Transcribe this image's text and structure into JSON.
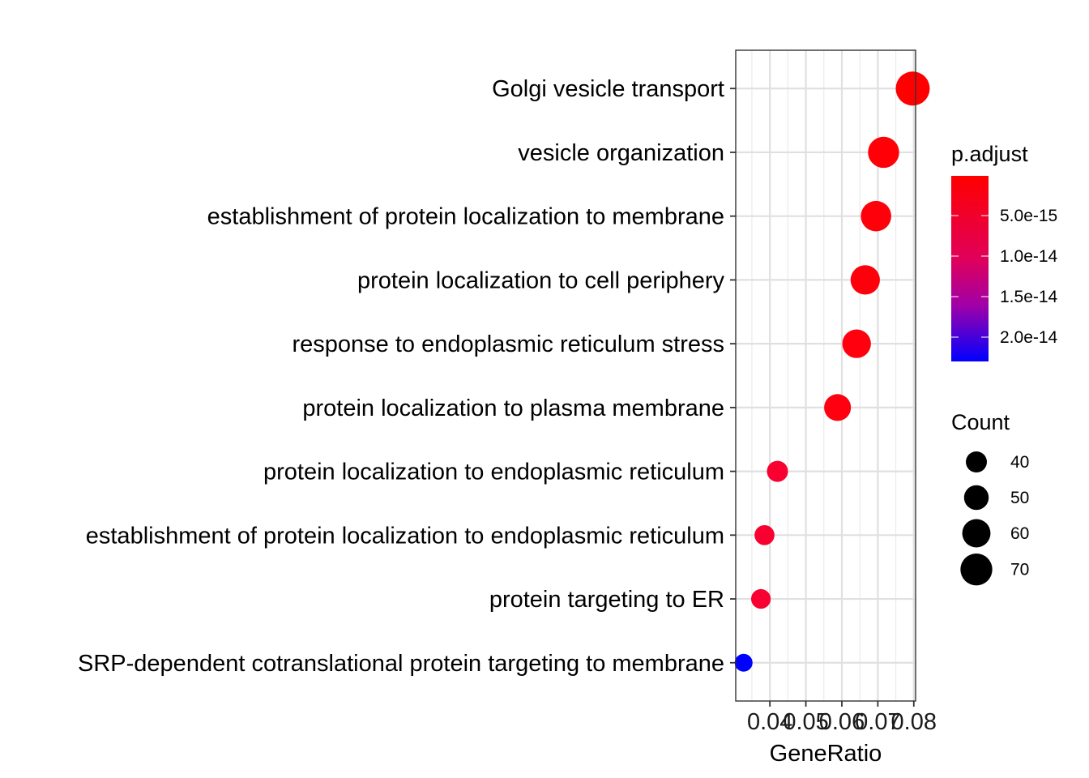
{
  "chart_data": {
    "type": "scatter",
    "title": "",
    "xlabel": "GeneRatio",
    "ylabel": "",
    "xlim": [
      0.0305,
      0.0805
    ],
    "x_ticks": [
      0.04,
      0.05,
      0.06,
      0.07,
      0.08
    ],
    "x_tick_labels": [
      "0.04",
      "0.05",
      "0.06",
      "0.07",
      "0.08"
    ],
    "grid": true,
    "categories": [
      "Golgi vesicle transport",
      "vesicle organization",
      "establishment of protein localization to membrane",
      "protein localization to cell periphery",
      "response to endoplasmic reticulum stress",
      "protein localization to plasma membrane",
      "protein localization to endoplasmic reticulum",
      "establishment of protein localization to endoplasmic reticulum",
      "protein targeting to ER",
      "SRP-dependent cotranslational protein targeting to membrane"
    ],
    "points": [
      {
        "term": "Golgi vesicle transport",
        "gene_ratio": 0.0797,
        "count": 76,
        "p_adjust": 1e-16,
        "color": "#FF0000"
      },
      {
        "term": "vesicle organization",
        "gene_ratio": 0.0716,
        "count": 68,
        "p_adjust": 2e-16,
        "color": "#FE0006"
      },
      {
        "term": "establishment of protein localization to membrane",
        "gene_ratio": 0.0695,
        "count": 66,
        "p_adjust": 3e-16,
        "color": "#FE000A"
      },
      {
        "term": "protein localization to cell periphery",
        "gene_ratio": 0.0665,
        "count": 63,
        "p_adjust": 5e-16,
        "color": "#FE000C"
      },
      {
        "term": "response to endoplasmic reticulum stress",
        "gene_ratio": 0.0641,
        "count": 61,
        "p_adjust": 8e-16,
        "color": "#FE000E"
      },
      {
        "term": "protein localization to plasma membrane",
        "gene_ratio": 0.0588,
        "count": 56,
        "p_adjust": 1.2e-15,
        "color": "#FE0010"
      },
      {
        "term": "protein localization to endoplasmic reticulum",
        "gene_ratio": 0.0421,
        "count": 40,
        "p_adjust": 2.4e-15,
        "color": "#F80030"
      },
      {
        "term": "establishment of protein localization to endoplasmic reticulum",
        "gene_ratio": 0.0385,
        "count": 37,
        "p_adjust": 2.6e-15,
        "color": "#F80030"
      },
      {
        "term": "protein targeting to ER",
        "gene_ratio": 0.0375,
        "count": 36,
        "p_adjust": 2.6e-15,
        "color": "#F80030"
      },
      {
        "term": "SRP-dependent cotranslational protein targeting to membrane",
        "gene_ratio": 0.0327,
        "count": 31,
        "p_adjust": 2.3e-14,
        "color": "#0000FF"
      }
    ],
    "legend_color": {
      "title": "p.adjust",
      "placement": "right",
      "labels": [
        "5.0e-15",
        "1.0e-14",
        "1.5e-14",
        "2.0e-14"
      ],
      "values": [
        5e-15,
        1e-14,
        1.5e-14,
        2e-14
      ],
      "range": [
        1e-16,
        2.3e-14
      ],
      "low_color": "#FF0000",
      "high_color": "#0000FF"
    },
    "legend_size": {
      "title": "Count",
      "placement": "right",
      "labels": [
        "40",
        "50",
        "60",
        "70"
      ],
      "values": [
        40,
        50,
        60,
        70
      ],
      "range": [
        31,
        76
      ]
    }
  }
}
